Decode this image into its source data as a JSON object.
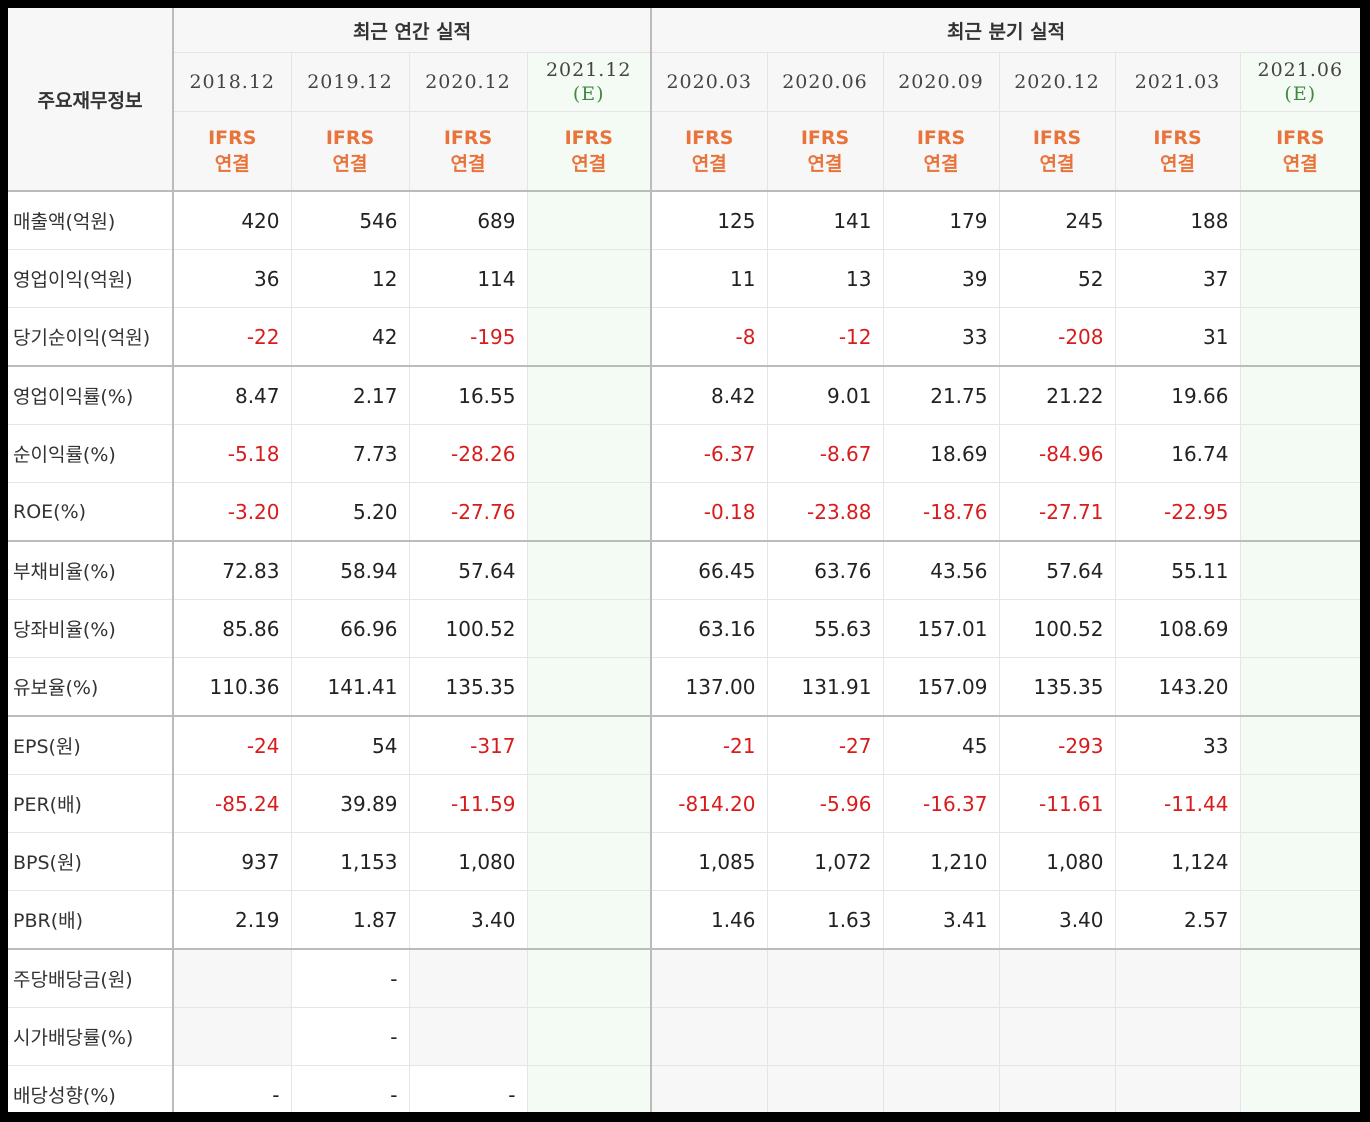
{
  "header": {
    "row_title": "주요재무정보",
    "annual_group": "최근 연간 실적",
    "quarter_group": "최근 분기 실적",
    "basis_top": "IFRS",
    "basis_bottom": "연결",
    "periods": [
      {
        "label": "2018.12",
        "est": ""
      },
      {
        "label": "2019.12",
        "est": ""
      },
      {
        "label": "2020.12",
        "est": ""
      },
      {
        "label": "2021.12",
        "est": "(E)"
      },
      {
        "label": "2020.03",
        "est": ""
      },
      {
        "label": "2020.06",
        "est": ""
      },
      {
        "label": "2020.09",
        "est": ""
      },
      {
        "label": "2020.12",
        "est": ""
      },
      {
        "label": "2021.03",
        "est": ""
      },
      {
        "label": "2021.06",
        "est": "(E)"
      }
    ]
  },
  "rows": [
    {
      "label": "매출액(억원)",
      "values": [
        "420",
        "546",
        "689",
        "",
        "125",
        "141",
        "179",
        "245",
        "188",
        ""
      ]
    },
    {
      "label": "영업이익(억원)",
      "values": [
        "36",
        "12",
        "114",
        "",
        "11",
        "13",
        "39",
        "52",
        "37",
        ""
      ]
    },
    {
      "label": "당기순이익(억원)",
      "values": [
        "-22",
        "42",
        "-195",
        "",
        "-8",
        "-12",
        "33",
        "-208",
        "31",
        ""
      ]
    },
    {
      "label": "영업이익률(%)",
      "values": [
        "8.47",
        "2.17",
        "16.55",
        "",
        "8.42",
        "9.01",
        "21.75",
        "21.22",
        "19.66",
        ""
      ]
    },
    {
      "label": "순이익률(%)",
      "values": [
        "-5.18",
        "7.73",
        "-28.26",
        "",
        "-6.37",
        "-8.67",
        "18.69",
        "-84.96",
        "16.74",
        ""
      ]
    },
    {
      "label": "ROE(%)",
      "values": [
        "-3.20",
        "5.20",
        "-27.76",
        "",
        "-0.18",
        "-23.88",
        "-18.76",
        "-27.71",
        "-22.95",
        ""
      ]
    },
    {
      "label": "부채비율(%)",
      "values": [
        "72.83",
        "58.94",
        "57.64",
        "",
        "66.45",
        "63.76",
        "43.56",
        "57.64",
        "55.11",
        ""
      ]
    },
    {
      "label": "당좌비율(%)",
      "values": [
        "85.86",
        "66.96",
        "100.52",
        "",
        "63.16",
        "55.63",
        "157.01",
        "100.52",
        "108.69",
        ""
      ]
    },
    {
      "label": "유보율(%)",
      "values": [
        "110.36",
        "141.41",
        "135.35",
        "",
        "137.00",
        "131.91",
        "157.09",
        "135.35",
        "143.20",
        ""
      ]
    },
    {
      "label": "EPS(원)",
      "values": [
        "-24",
        "54",
        "-317",
        "",
        "-21",
        "-27",
        "45",
        "-293",
        "33",
        ""
      ]
    },
    {
      "label": "PER(배)",
      "values": [
        "-85.24",
        "39.89",
        "-11.59",
        "",
        "-814.20",
        "-5.96",
        "-16.37",
        "-11.61",
        "-11.44",
        ""
      ]
    },
    {
      "label": "BPS(원)",
      "values": [
        "937",
        "1,153",
        "1,080",
        "",
        "1,085",
        "1,072",
        "1,210",
        "1,080",
        "1,124",
        ""
      ]
    },
    {
      "label": "PBR(배)",
      "values": [
        "2.19",
        "1.87",
        "3.40",
        "",
        "1.46",
        "1.63",
        "3.41",
        "3.40",
        "2.57",
        ""
      ]
    },
    {
      "label": "주당배당금(원)",
      "values": [
        "",
        "-",
        "",
        "",
        "",
        "",
        "",
        "",
        "",
        ""
      ]
    },
    {
      "label": "시가배당률(%)",
      "values": [
        "",
        "-",
        "",
        "",
        "",
        "",
        "",
        "",
        "",
        ""
      ]
    },
    {
      "label": "배당성향(%)",
      "values": [
        "-",
        "-",
        "-",
        "",
        "",
        "",
        "",
        "",
        "",
        ""
      ]
    }
  ],
  "colors": {
    "negative": "#d81c1c",
    "ifrs": "#e8743b",
    "estimate": "#3d8b3d",
    "estimate_bg": "#f4faf4"
  }
}
